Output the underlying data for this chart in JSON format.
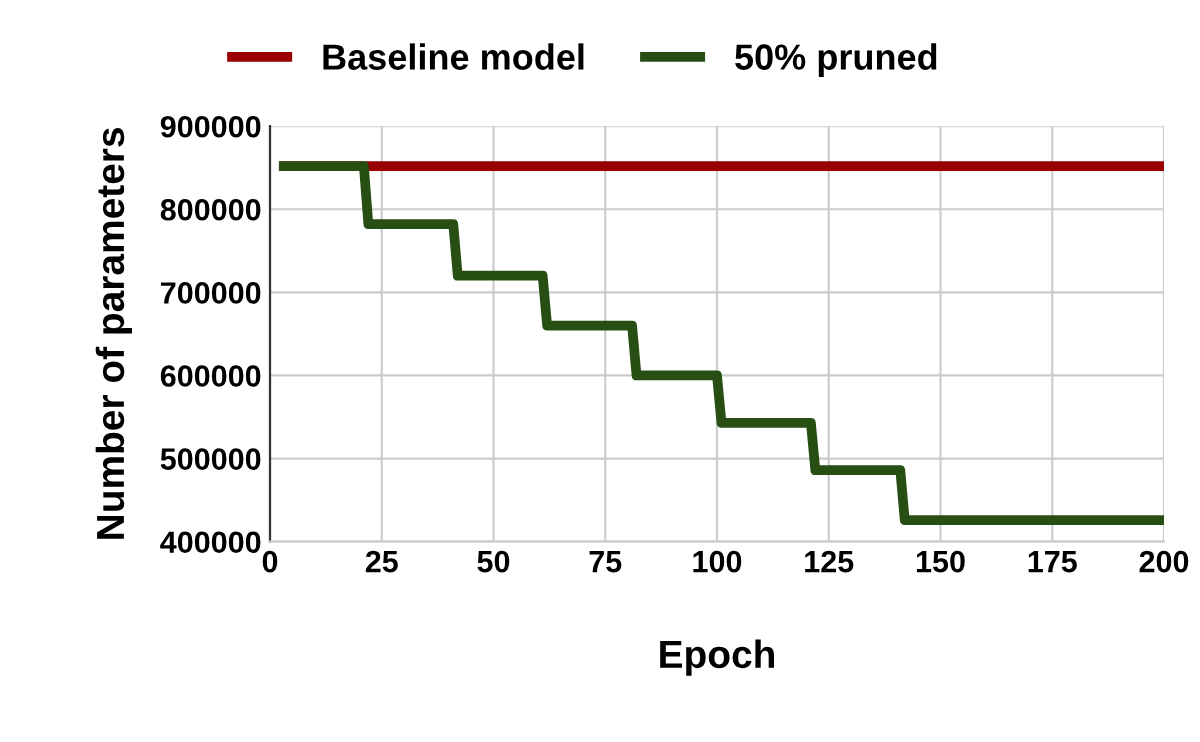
{
  "chart_data": {
    "type": "line",
    "xlabel": "Epoch",
    "ylabel": "Number of parameters",
    "xlim": [
      0,
      200
    ],
    "xticks": [
      0,
      25,
      50,
      75,
      100,
      125,
      150,
      175,
      200
    ],
    "ylim": [
      400000,
      900000
    ],
    "yticks": [
      400000,
      500000,
      600000,
      700000,
      800000,
      900000
    ],
    "grid": true,
    "legend": "top",
    "marker": "none",
    "line_style": "solid",
    "series": [
      {
        "name": "Baseline model",
        "color": "#990000",
        "x": [
          2,
          200
        ],
        "values": [
          852000,
          852000
        ]
      },
      {
        "name": "50% pruned",
        "color": "#274e13",
        "x": [
          2,
          21,
          22,
          41,
          42,
          61,
          62,
          81,
          82,
          100,
          101,
          121,
          122,
          141,
          142,
          200
        ],
        "values": [
          852000,
          852000,
          782000,
          782000,
          720000,
          720000,
          660000,
          660000,
          600000,
          600000,
          543000,
          543000,
          486000,
          486000,
          426000,
          426000
        ]
      }
    ]
  }
}
